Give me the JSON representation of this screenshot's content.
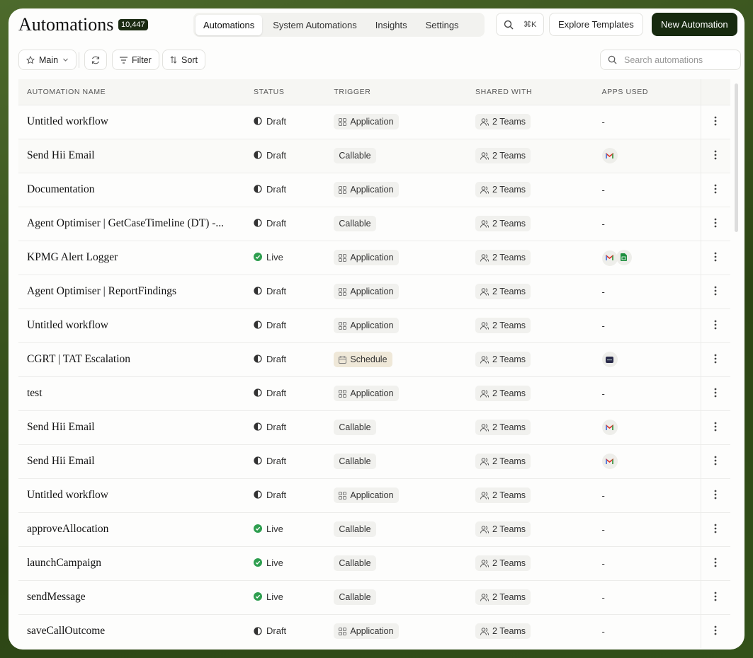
{
  "header": {
    "title": "Automations",
    "count": "10,447",
    "tabs": [
      "Automations",
      "System Automations",
      "Insights",
      "Settings"
    ],
    "shortcut": "⌘K",
    "explore": "Explore Templates",
    "new": "New Automation"
  },
  "toolbar": {
    "view": "Main",
    "filter": "Filter",
    "sort": "Sort",
    "search": "Search automations"
  },
  "table": {
    "columns": [
      "AUTOMATION NAME",
      "STATUS",
      "TRIGGER",
      "SHARED WITH",
      "APPS USED"
    ],
    "rows": [
      {
        "name": "Untitled workflow",
        "status": "Draft",
        "trigger": "Application",
        "shared": "2 Teams",
        "apps": "-"
      },
      {
        "name": "Send Hii Email",
        "status": "Draft",
        "trigger": "Callable",
        "shared": "2 Teams",
        "apps": null
      },
      {
        "name": "Documentation",
        "status": "Draft",
        "trigger": "Application",
        "shared": "2 Teams",
        "apps": "-"
      },
      {
        "name": "Agent Optimiser | GetCaseTimeline (DT) -...",
        "status": "Draft",
        "trigger": "Callable",
        "shared": "2 Teams",
        "apps": "-"
      },
      {
        "name": "KPMG Alert Logger",
        "status": "Live",
        "trigger": "Application",
        "shared": "2 Teams",
        "apps": null
      },
      {
        "name": "Agent Optimiser | ReportFindings",
        "status": "Draft",
        "trigger": "Application",
        "shared": "2 Teams",
        "apps": "-"
      },
      {
        "name": "Untitled workflow",
        "status": "Draft",
        "trigger": "Application",
        "shared": "2 Teams",
        "apps": "-"
      },
      {
        "name": "CGRT | TAT Escalation",
        "status": "Draft",
        "trigger": "Schedule",
        "shared": "2 Teams",
        "apps": null
      },
      {
        "name": "test",
        "status": "Draft",
        "trigger": "Application",
        "shared": "2 Teams",
        "apps": "-"
      },
      {
        "name": "Send Hii Email",
        "status": "Draft",
        "trigger": "Callable",
        "shared": "2 Teams",
        "apps": null
      },
      {
        "name": "Send Hii Email",
        "status": "Draft",
        "trigger": "Callable",
        "shared": "2 Teams",
        "apps": null
      },
      {
        "name": "Untitled workflow",
        "status": "Draft",
        "trigger": "Application",
        "shared": "2 Teams",
        "apps": "-"
      },
      {
        "name": "approveAllocation",
        "status": "Live",
        "trigger": "Callable",
        "shared": "2 Teams",
        "apps": "-"
      },
      {
        "name": "launchCampaign",
        "status": "Live",
        "trigger": "Callable",
        "shared": "2 Teams",
        "apps": "-"
      },
      {
        "name": "sendMessage",
        "status": "Live",
        "trigger": "Callable",
        "shared": "2 Teams",
        "apps": "-"
      },
      {
        "name": "saveCallOutcome",
        "status": "Draft",
        "trigger": "Application",
        "shared": "2 Teams",
        "apps": "-"
      }
    ]
  }
}
